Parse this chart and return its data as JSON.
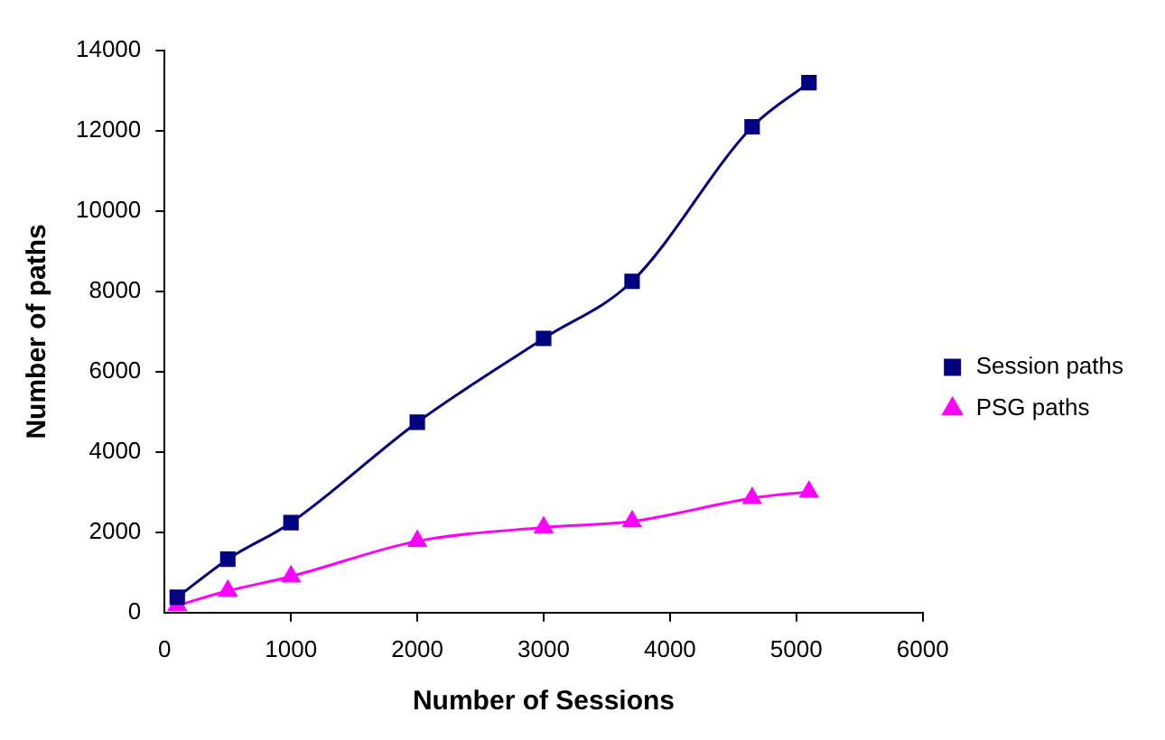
{
  "chart_data": {
    "type": "line",
    "xlabel": "Number of Sessions",
    "ylabel": "Number of paths",
    "xlim": [
      0,
      6000
    ],
    "xticks": [
      0,
      1000,
      2000,
      3000,
      4000,
      5000,
      6000
    ],
    "ylim": [
      0,
      14000
    ],
    "yticks": [
      0,
      2000,
      4000,
      6000,
      8000,
      10000,
      12000,
      14000
    ],
    "grid": false,
    "legend": "right",
    "line_style": "solid",
    "series": [
      {
        "name": "Session paths",
        "color": "#000080",
        "marker": "square",
        "x": [
          100,
          500,
          1000,
          2000,
          3000,
          3700,
          4650,
          5100
        ],
        "values": [
          380,
          1330,
          2240,
          4740,
          6830,
          8250,
          12100,
          13200
        ]
      },
      {
        "name": "PSG paths",
        "color": "#ff00ff",
        "marker": "triangle",
        "x": [
          100,
          500,
          1000,
          2000,
          3000,
          3700,
          4650,
          5100
        ],
        "values": [
          180,
          540,
          900,
          1780,
          2120,
          2270,
          2850,
          3010
        ]
      }
    ]
  }
}
